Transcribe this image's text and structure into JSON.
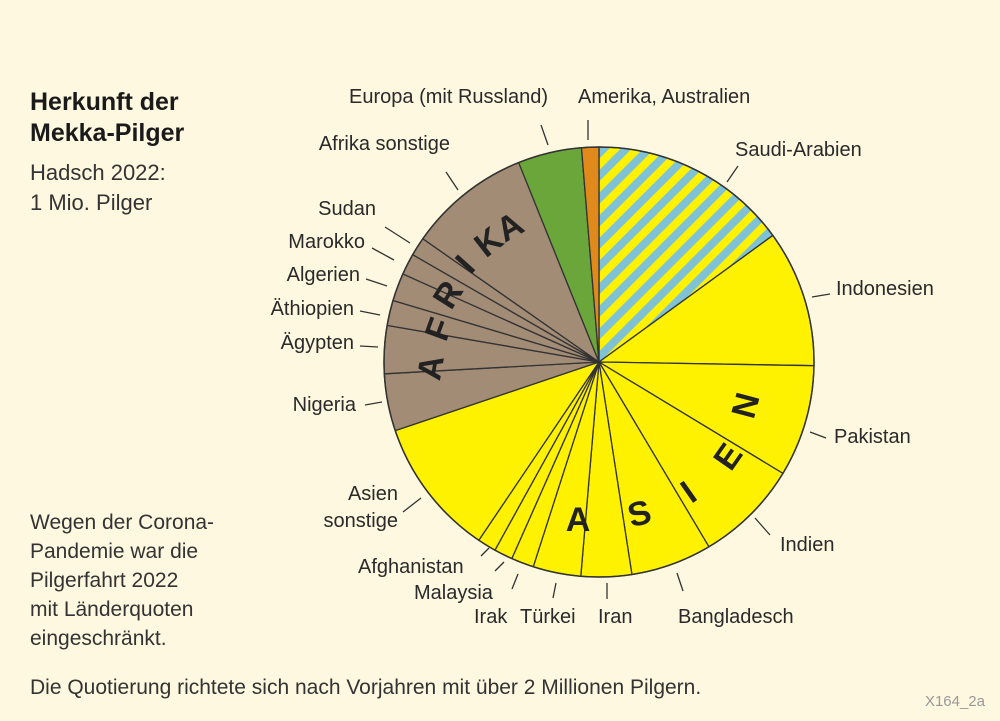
{
  "title": {
    "line1": "Herkunft der",
    "line2": "Mekka-Pilger"
  },
  "subtitle": {
    "line1": "Hadsch 2022:",
    "line2": "1 Mio. Pilger"
  },
  "note": [
    "Wegen der Corona-",
    "Pandemie war die",
    "Pilgerfahrt 2022",
    "mit Länderquoten",
    "eingeschränkt."
  ],
  "footer": "Die Quotierung richtete sich nach Vorjahren mit über 2 Millionen Pilgern.",
  "code": "X164_2a",
  "chart_data": {
    "type": "pie",
    "title": "Herkunft der Mekka-Pilger",
    "unit": "share of pilgrims, % (estimated from slice angles)",
    "start": "top, clockwise",
    "group_labels": {
      "asia": "ASIEN",
      "africa": "AFRIKA"
    },
    "colors": {
      "asia": "#fff200",
      "africa": "#a28c76",
      "europe": "#6aa63a",
      "america": "#e08a1c",
      "saudi_stripe_a": "#fff200",
      "saudi_stripe_b": "#7fc2d6",
      "outline": "#333333",
      "background": "#fdf8df"
    },
    "slices": [
      {
        "label": "Saudi-Arabien",
        "value": 15.0,
        "group": "saudi"
      },
      {
        "label": "Indonesien",
        "value": 10.3,
        "group": "asia"
      },
      {
        "label": "Pakistan",
        "value": 8.4,
        "group": "asia"
      },
      {
        "label": "Indien",
        "value": 7.8,
        "group": "asia"
      },
      {
        "label": "Bangladesch",
        "value": 6.1,
        "group": "asia"
      },
      {
        "label": "Iran",
        "value": 3.8,
        "group": "asia"
      },
      {
        "label": "Türkei",
        "value": 3.6,
        "group": "asia"
      },
      {
        "label": "Irak",
        "value": 1.7,
        "group": "asia"
      },
      {
        "label": "Malaysia",
        "value": 1.4,
        "group": "asia"
      },
      {
        "label": "Afghanistan",
        "value": 1.4,
        "group": "asia"
      },
      {
        "label": "Asien sonstige",
        "value": 10.4,
        "group": "asia"
      },
      {
        "label": "Nigeria",
        "value": 4.3,
        "group": "africa"
      },
      {
        "label": "Ägypten",
        "value": 3.6,
        "group": "africa"
      },
      {
        "label": "Äthiopien",
        "value": 1.9,
        "group": "africa"
      },
      {
        "label": "Algerien",
        "value": 2.1,
        "group": "africa"
      },
      {
        "label": "Marokko",
        "value": 1.6,
        "group": "africa"
      },
      {
        "label": "Sudan",
        "value": 1.4,
        "group": "africa"
      },
      {
        "label": "Afrika sonstige",
        "value": 9.2,
        "group": "africa"
      },
      {
        "label": "Europa (mit Russland)",
        "value": 4.8,
        "group": "europe"
      },
      {
        "label": "Amerika, Australien",
        "value": 1.3,
        "group": "america"
      }
    ]
  }
}
